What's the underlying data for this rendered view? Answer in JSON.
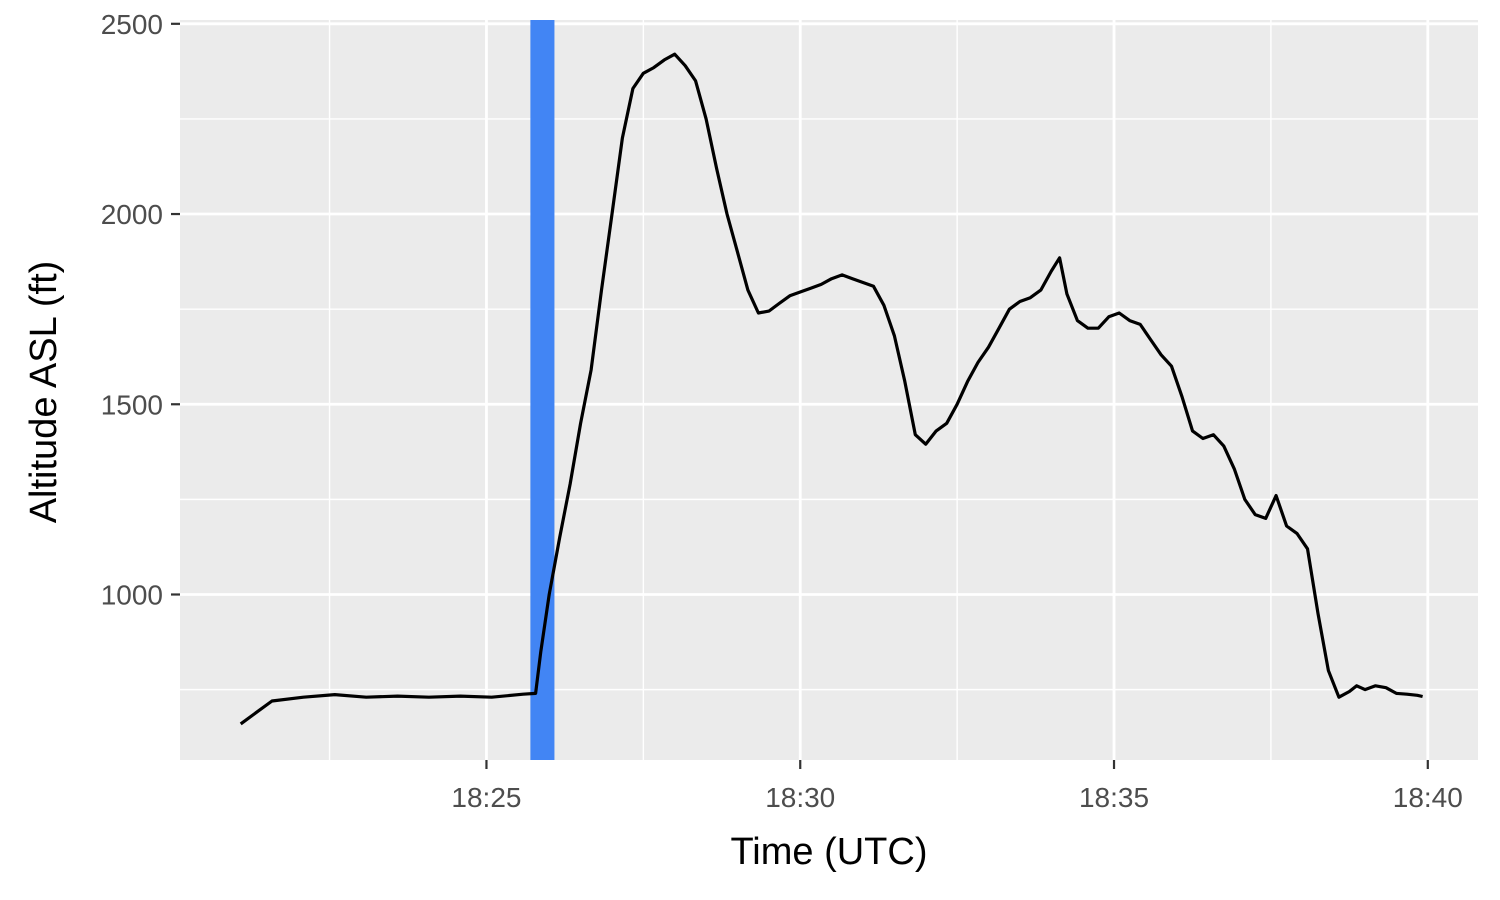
{
  "chart_data": {
    "type": "line",
    "title": "",
    "xlabel": "Time (UTC)",
    "ylabel": "Altitude ASL (ft)",
    "x_ticks": [
      "18:25",
      "18:30",
      "18:35",
      "18:40"
    ],
    "y_ticks": [
      "1000",
      "1500",
      "2000",
      "2500"
    ],
    "xlim": [
      "18:20:07",
      "18:40:48"
    ],
    "ylim": [
      565,
      2510
    ],
    "grid": true,
    "background_color": "#ebebeb",
    "grid_color": "#ffffff",
    "line_color": "#000000",
    "highlight": {
      "start": "18:25:42",
      "end": "18:26:05",
      "color": "#4285f4"
    },
    "series": [
      {
        "x": [
          "18:21:05",
          "18:21:35",
          "18:22:05",
          "18:22:35",
          "18:23:05",
          "18:23:35",
          "18:24:05",
          "18:24:35",
          "18:25:05",
          "18:25:35",
          "18:25:47",
          "18:25:52",
          "18:26:00",
          "18:26:10",
          "18:26:20",
          "18:26:30",
          "18:26:40",
          "18:26:50",
          "18:27:00",
          "18:27:10",
          "18:27:20",
          "18:27:30",
          "18:27:40",
          "18:27:50",
          "18:28:00",
          "18:28:10",
          "18:28:20",
          "18:28:30",
          "18:28:40",
          "18:28:50",
          "18:29:00",
          "18:29:10",
          "18:29:20",
          "18:29:30",
          "18:29:40",
          "18:29:50",
          "18:30:00",
          "18:30:10",
          "18:30:20",
          "18:30:30",
          "18:30:40",
          "18:30:50",
          "18:31:00",
          "18:31:10",
          "18:31:20",
          "18:31:30",
          "18:31:40",
          "18:31:50",
          "18:32:00",
          "18:32:10",
          "18:32:20",
          "18:32:30",
          "18:32:40",
          "18:32:50",
          "18:33:00",
          "18:33:10",
          "18:33:20",
          "18:33:30",
          "18:33:40",
          "18:33:50",
          "18:34:00",
          "18:34:08",
          "18:34:15",
          "18:34:25",
          "18:34:35",
          "18:34:45",
          "18:34:55",
          "18:35:05",
          "18:35:15",
          "18:35:25",
          "18:35:35",
          "18:35:45",
          "18:35:55",
          "18:36:05",
          "18:36:15",
          "18:36:25",
          "18:36:35",
          "18:36:45",
          "18:36:55",
          "18:37:05",
          "18:37:15",
          "18:37:25",
          "18:37:35",
          "18:37:45",
          "18:37:55",
          "18:38:05",
          "18:38:15",
          "18:38:25",
          "18:38:35",
          "18:38:45",
          "18:38:52",
          "18:39:00",
          "18:39:10",
          "18:39:20",
          "18:39:30",
          "18:39:40",
          "18:39:50",
          "18:39:55"
        ],
        "y": [
          660,
          720,
          730,
          737,
          730,
          733,
          730,
          733,
          730,
          738,
          740,
          850,
          1000,
          1150,
          1290,
          1450,
          1590,
          1800,
          2000,
          2200,
          2330,
          2370,
          2385,
          2405,
          2420,
          2390,
          2350,
          2250,
          2120,
          2000,
          1900,
          1800,
          1740,
          1745,
          1765,
          1785,
          1795,
          1805,
          1815,
          1830,
          1840,
          1830,
          1820,
          1810,
          1760,
          1680,
          1560,
          1420,
          1395,
          1430,
          1450,
          1500,
          1560,
          1610,
          1650,
          1700,
          1750,
          1770,
          1780,
          1800,
          1850,
          1885,
          1790,
          1720,
          1700,
          1700,
          1730,
          1740,
          1720,
          1710,
          1670,
          1630,
          1600,
          1520,
          1430,
          1410,
          1420,
          1390,
          1330,
          1250,
          1210,
          1200,
          1260,
          1180,
          1160,
          1120,
          950,
          800,
          730,
          745,
          760,
          750,
          760,
          755,
          740,
          738,
          735,
          732
        ]
      }
    ]
  }
}
